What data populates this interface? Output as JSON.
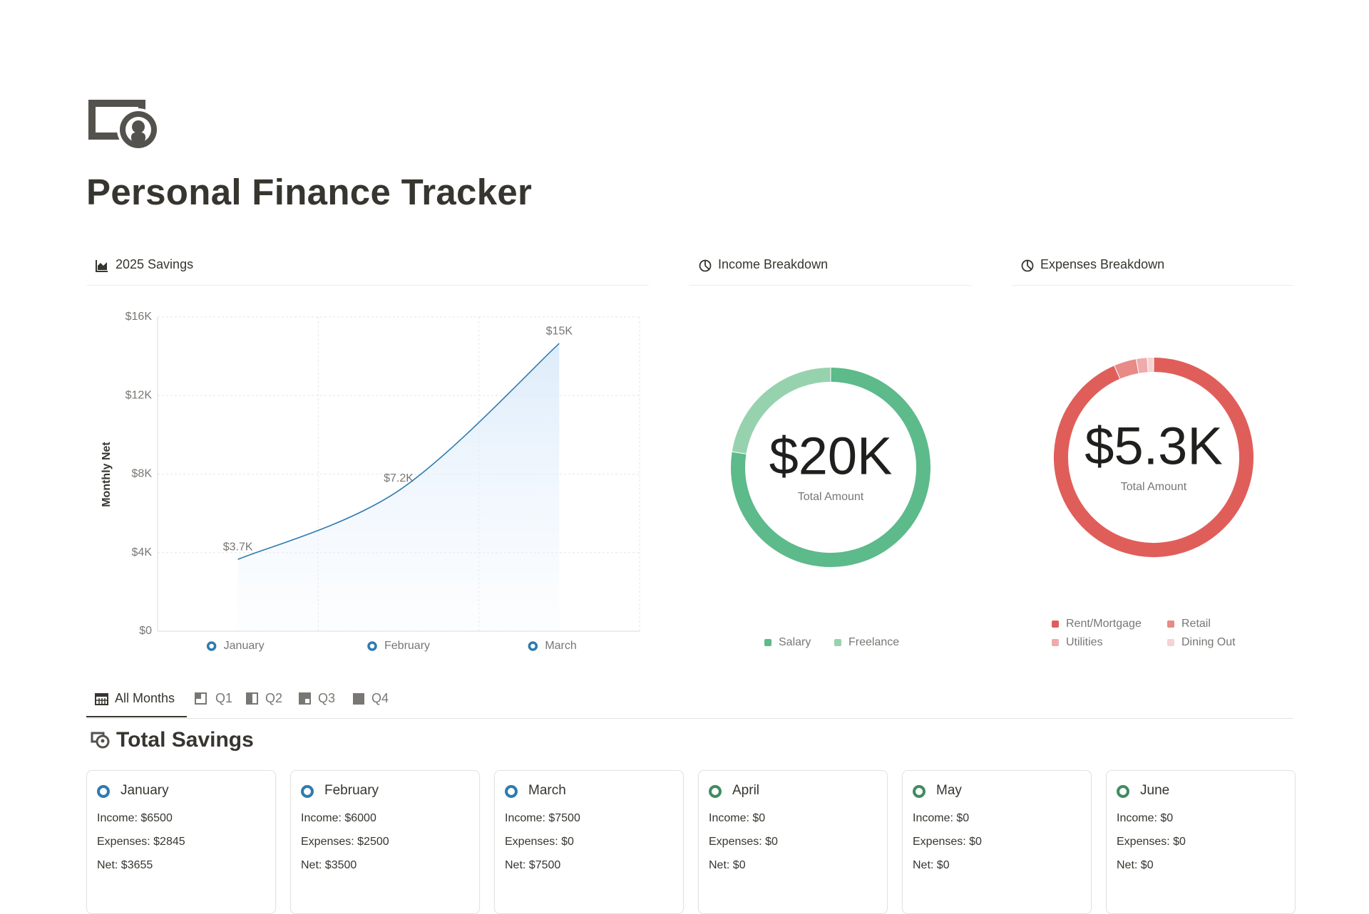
{
  "page": {
    "title": "Personal Finance Tracker"
  },
  "chart_data": [
    {
      "type": "line",
      "title": "2025 Savings",
      "y_label": "Monthly Net",
      "categories": [
        "January",
        "February",
        "March"
      ],
      "values": [
        3655,
        7155,
        14655
      ],
      "value_labels": [
        "$3.7K",
        "$7.2K",
        "$15K"
      ],
      "color": "#2e7bb0",
      "ylim": [
        0,
        16000
      ],
      "yticks": [
        {
          "value": 0,
          "label": "$0"
        },
        {
          "value": 4000,
          "label": "$4K"
        },
        {
          "value": 8000,
          "label": "$8K"
        },
        {
          "value": 12000,
          "label": "$12K"
        },
        {
          "value": 16000,
          "label": "$16K"
        }
      ],
      "grid": true
    },
    {
      "type": "donut",
      "title": "Income Breakdown",
      "categories": [
        "Salary",
        "Freelance"
      ],
      "values": [
        15500,
        4500
      ],
      "colors": [
        "#5dba8a",
        "#97d2ae"
      ],
      "total": {
        "value": 20000,
        "label": "$20K"
      },
      "total_caption": "Total Amount"
    },
    {
      "type": "donut",
      "title": "Expenses Breakdown",
      "categories": [
        "Rent/Mortgage",
        "Retail",
        "Utilities",
        "Dining Out"
      ],
      "values": [
        5000,
        195,
        95,
        55
      ],
      "colors": [
        "#e05e5a",
        "#e88a86",
        "#efabab",
        "#f6d3d3"
      ],
      "total": {
        "value": 5345,
        "label": "$5.3K"
      },
      "total_caption": "Total Amount"
    }
  ],
  "tabs": [
    "All Months",
    "Q1",
    "Q2",
    "Q3",
    "Q4"
  ],
  "section_title": "Total Savings",
  "cards": [
    {
      "month": "January",
      "color": "#2e7bb0",
      "income": "Income: $6500",
      "expenses": "Expenses: $2845",
      "net": "Net: $3655"
    },
    {
      "month": "February",
      "color": "#2e7bb0",
      "income": "Income: $6000",
      "expenses": "Expenses: $2500",
      "net": "Net: $3500"
    },
    {
      "month": "March",
      "color": "#2e7bb0",
      "income": "Income: $7500",
      "expenses": "Expenses: $0",
      "net": "Net: $7500"
    },
    {
      "month": "April",
      "color": "#3f8c62",
      "income": "Income: $0",
      "expenses": "Expenses: $0",
      "net": "Net: $0"
    },
    {
      "month": "May",
      "color": "#3f8c62",
      "income": "Income: $0",
      "expenses": "Expenses: $0",
      "net": "Net: $0"
    },
    {
      "month": "June",
      "color": "#3f8c62",
      "income": "Income: $0",
      "expenses": "Expenses: $0",
      "net": "Net: $0"
    }
  ]
}
